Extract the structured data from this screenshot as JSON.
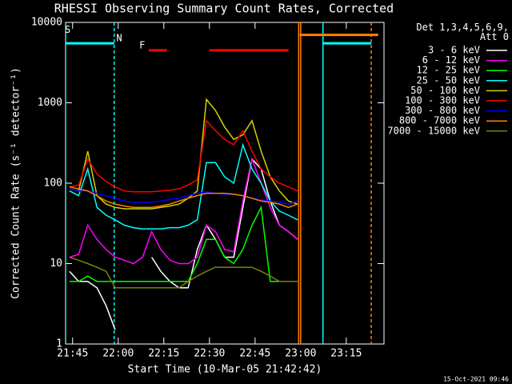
{
  "chart_data": {
    "type": "line",
    "title": "RHESSI Observing Summary Count Rates, Corrected",
    "xlabel": "Start Time (10-Mar-05 21:42:42)",
    "ylabel": "Corrected Count Rate (s⁻¹ detector⁻¹)",
    "legend_title": "Det 1,3,4,5,6,9,\nAtt 0",
    "footer": "15-Oct-2021 09:46",
    "log_y": true,
    "legend": "outside-right",
    "xlim": [
      "21:42:42",
      "23:27:24"
    ],
    "xticks": [
      "21:45",
      "22:00",
      "22:15",
      "22:30",
      "22:45",
      "23:00",
      "23:15"
    ],
    "ylim": [
      1,
      10000
    ],
    "yticks": [
      1,
      10,
      100,
      1000,
      10000
    ],
    "x": [
      "21:44",
      "21:47",
      "21:50",
      "21:53",
      "21:56",
      "21:59",
      "22:02",
      "22:05",
      "22:08",
      "22:11",
      "22:14",
      "22:17",
      "22:20",
      "22:23",
      "22:26",
      "22:29",
      "22:32",
      "22:35",
      "22:38",
      "22:41",
      "22:44",
      "22:47",
      "22:50",
      "22:53",
      "22:56",
      "22:59"
    ],
    "series": [
      {
        "name": "3 - 6 keV",
        "color": "#ffffff",
        "values": [
          8,
          6,
          6,
          5,
          3,
          1.5,
          null,
          null,
          null,
          12,
          8,
          6,
          5,
          5,
          15,
          30,
          20,
          12,
          12,
          50,
          200,
          150,
          60,
          30,
          25,
          20
        ]
      },
      {
        "name": "6 - 12 keV",
        "color": "#ff00ff",
        "values": [
          12,
          13,
          30,
          20,
          15,
          12,
          11,
          10,
          12,
          25,
          15,
          11,
          10,
          10,
          12,
          30,
          25,
          15,
          14,
          60,
          200,
          100,
          50,
          30,
          25,
          20
        ]
      },
      {
        "name": "12 - 25 keV",
        "color": "#00ff00",
        "values": [
          6,
          6,
          7,
          6,
          6,
          6,
          6,
          6,
          6,
          6,
          6,
          6,
          6,
          6,
          10,
          20,
          20,
          12,
          10,
          15,
          30,
          50,
          6,
          6,
          6,
          6
        ]
      },
      {
        "name": "25 - 50 keV",
        "color": "#00ffff",
        "values": [
          80,
          70,
          150,
          50,
          40,
          35,
          30,
          28,
          27,
          27,
          27,
          28,
          28,
          30,
          35,
          180,
          180,
          120,
          100,
          300,
          150,
          100,
          60,
          45,
          40,
          35
        ]
      },
      {
        "name": "50 - 100 keV",
        "color": "#d2d200",
        "values": [
          85,
          80,
          250,
          70,
          55,
          50,
          48,
          48,
          48,
          48,
          50,
          52,
          55,
          65,
          80,
          1100,
          800,
          500,
          350,
          400,
          600,
          250,
          120,
          80,
          60,
          55
        ]
      },
      {
        "name": "100 - 300 keV",
        "color": "#ff0000",
        "values": [
          90,
          95,
          200,
          130,
          105,
          90,
          80,
          78,
          78,
          78,
          80,
          82,
          85,
          95,
          110,
          600,
          450,
          350,
          300,
          450,
          250,
          150,
          120,
          100,
          90,
          80
        ]
      },
      {
        "name": "300 - 800 keV",
        "color": "#0000ff",
        "values": [
          85,
          80,
          80,
          75,
          70,
          65,
          60,
          58,
          58,
          58,
          60,
          63,
          65,
          70,
          75,
          78,
          75,
          73,
          72,
          70,
          65,
          62,
          60,
          58,
          55,
          60
        ]
      },
      {
        "name": "800 - 7000 keV",
        "color": "#ff8000",
        "values": [
          90,
          85,
          80,
          70,
          60,
          55,
          52,
          50,
          50,
          50,
          52,
          55,
          60,
          65,
          70,
          75,
          75,
          75,
          73,
          70,
          65,
          60,
          58,
          55,
          50,
          55
        ]
      },
      {
        "name": "7000 - 15000 keV",
        "color": "#808000",
        "values": [
          12,
          11,
          10,
          9,
          8,
          5,
          5,
          5,
          5,
          5,
          5,
          5,
          5,
          6,
          7,
          8,
          9,
          9,
          9,
          9,
          9,
          8,
          7,
          6,
          6,
          6
        ]
      }
    ],
    "flags": [
      {
        "label": "S",
        "color": "#ff8000",
        "level": 7000,
        "intervals": [
          [
            "22:59:40",
            "23:25:30"
          ]
        ]
      },
      {
        "label": "N",
        "color": "#00ffff",
        "level": 5500,
        "intervals": [
          [
            "21:42:42",
            "21:58:40"
          ],
          [
            "23:07:20",
            "23:23:12"
          ]
        ]
      },
      {
        "label": "F",
        "color": "#ff0000",
        "level": 4500,
        "intervals": [
          [
            "22:10",
            "22:16"
          ],
          [
            "22:30",
            "22:56"
          ]
        ]
      }
    ],
    "vlines": [
      {
        "x": "21:42:42",
        "color": "#00ffff",
        "dashed": false
      },
      {
        "x": "21:58:40",
        "color": "#00ffff",
        "dashed": true
      },
      {
        "x": "22:59:20",
        "color": "#ff8000",
        "dashed": false
      },
      {
        "x": "23:00:00",
        "color": "#ff8000",
        "dashed": false
      },
      {
        "x": "23:07:20",
        "color": "#00ffff",
        "dashed": false
      },
      {
        "x": "23:23:12",
        "color": "#ff8000",
        "dashed": true
      }
    ]
  }
}
